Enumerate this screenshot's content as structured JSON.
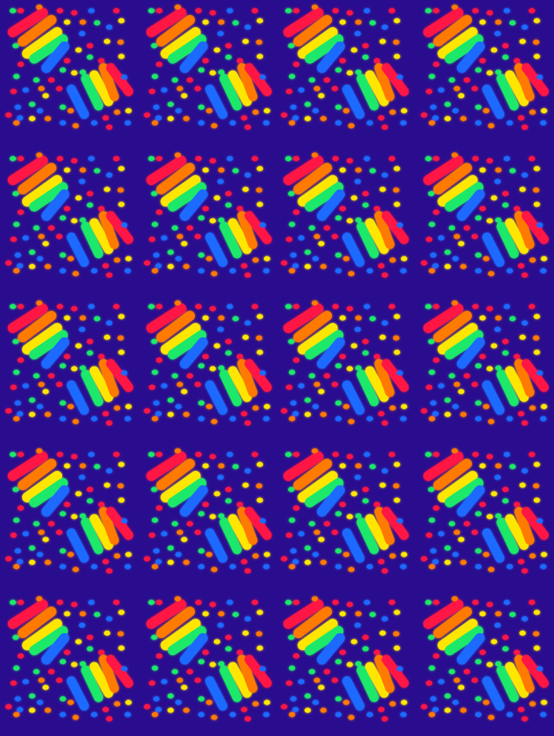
{
  "pattern": {
    "columns": 4,
    "rows": 5,
    "background": "#2a0d8e",
    "palette": {
      "red": "#ff1744",
      "orange": "#ff7a00",
      "yellow": "#ffe600",
      "green": "#1ee86a",
      "blue": "#1e6bff"
    }
  }
}
